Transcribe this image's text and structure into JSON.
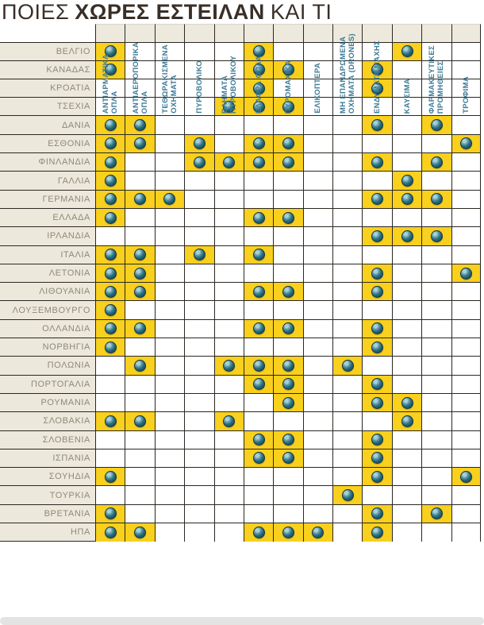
{
  "title": {
    "light_prefix": "ΠΟΙΕΣ",
    "bold": "ΧΩΡΕΣ ΕΣΤΕΙΛΑΝ",
    "light_suffix": "ΚΑΙ ΤΙ"
  },
  "colors": {
    "highlight_yellow": "#f8d01d",
    "dot_teal": "#256d7d",
    "dot_outline": "#16343f",
    "dot_highlight": "#a9cfd8",
    "grid_line": "#2b2722",
    "label_background": "#ece9dc",
    "label_text": "#8f887a",
    "header_text": "#3f7b96",
    "bottom_bar": "#e3e3e1"
  },
  "chart_data": {
    "type": "heatmap",
    "title": "ΠΟΙΕΣ ΧΩΡΕΣ ΕΣΤΕΙΛΑΝ ΚΑΙ ΤΙ",
    "columns": [
      "ΑΝΤΙΑΡΜΑΤΙΚΑ\nΟΠΛΑ",
      "ΑΝΤΙΑΕΡΟΠΟΡΙΚΑ\nΟΠΛΑ",
      "ΤΕΘΩΡΑΚΙΣΜΕΝΑ\nΟΧΗΜΑΤΑ",
      "ΠΥΡΟΒΟΛΙΚΟ",
      "ΒΛΗΜΑΤΑ\nΠΥΡΟΒΟΛΙΚΟΥ",
      "ΕΛΑΦΡΑ ΟΠΛΑ",
      "ΠΥΡΟΜΑΧΙΚΑ",
      "ΕΛΙΚΟΠΤΕΡΑ",
      "ΜΗ ΕΠΑΝΔΡΩΜΕΝΑ\nΟΧΗΜΑΤΑ (DRONES)",
      "ΕΝΔΥΜΑΤΑ ΜΑΧΗΣ",
      "ΚΑΥΣΙΜΑ",
      "ΦΑΡΜΑΚΕΥΤΙΚΕΣ\nΠΡΟΜΗΘΕΙΕΣ",
      "ΤΡΟΦΙΜΑ"
    ],
    "rows": [
      {
        "country": "ΒΕΛΓΙΟ",
        "values": [
          1,
          0,
          0,
          0,
          0,
          1,
          0,
          0,
          0,
          0,
          1,
          0,
          0
        ]
      },
      {
        "country": "ΚΑΝΑΔΑΣ",
        "values": [
          1,
          0,
          0,
          0,
          0,
          1,
          1,
          0,
          0,
          1,
          0,
          0,
          0
        ]
      },
      {
        "country": "ΚΡΟΑΤΙΑ",
        "values": [
          0,
          0,
          0,
          0,
          0,
          1,
          0,
          0,
          0,
          1,
          0,
          0,
          0
        ]
      },
      {
        "country": "ΤΣΕΧΙΑ",
        "values": [
          0,
          0,
          0,
          0,
          1,
          1,
          1,
          0,
          0,
          0,
          0,
          0,
          0
        ]
      },
      {
        "country": "ΔΑΝΙΑ",
        "values": [
          1,
          1,
          0,
          0,
          0,
          0,
          0,
          0,
          0,
          1,
          0,
          1,
          0
        ]
      },
      {
        "country": "ΕΣΘΟΝΙΑ",
        "values": [
          1,
          1,
          0,
          1,
          0,
          1,
          1,
          0,
          0,
          0,
          0,
          0,
          1
        ]
      },
      {
        "country": "ΦΙΝΛΑΝΔΙΑ",
        "values": [
          1,
          0,
          0,
          1,
          1,
          1,
          1,
          0,
          0,
          1,
          0,
          1,
          0
        ]
      },
      {
        "country": "ΓΑΛΛΙΑ",
        "values": [
          1,
          0,
          0,
          0,
          0,
          0,
          0,
          0,
          0,
          0,
          1,
          0,
          0
        ]
      },
      {
        "country": "ΓΕΡΜΑΝΙΑ",
        "values": [
          1,
          1,
          1,
          0,
          0,
          0,
          0,
          0,
          0,
          1,
          1,
          1,
          0
        ]
      },
      {
        "country": "ΕΛΛΑΔΑ",
        "values": [
          1,
          0,
          0,
          0,
          0,
          1,
          1,
          0,
          0,
          0,
          0,
          0,
          0
        ]
      },
      {
        "country": "ΙΡΛΑΝΔΙΑ",
        "values": [
          0,
          0,
          0,
          0,
          0,
          0,
          0,
          0,
          0,
          1,
          1,
          1,
          0
        ]
      },
      {
        "country": "ΙΤΑΛΙΑ",
        "values": [
          1,
          1,
          0,
          1,
          0,
          1,
          0,
          0,
          0,
          0,
          0,
          0,
          0
        ]
      },
      {
        "country": "ΛΕΤΟΝΙΑ",
        "values": [
          1,
          1,
          0,
          0,
          0,
          0,
          0,
          0,
          0,
          1,
          0,
          0,
          1
        ]
      },
      {
        "country": "ΛΙΘΟΥΑΝΙΑ",
        "values": [
          1,
          1,
          0,
          0,
          0,
          1,
          1,
          0,
          0,
          1,
          0,
          0,
          0
        ]
      },
      {
        "country": "ΛΟΥΞΕΜΒΟΥΡΓΟ",
        "values": [
          1,
          0,
          0,
          0,
          0,
          0,
          0,
          0,
          0,
          0,
          0,
          0,
          0
        ]
      },
      {
        "country": "ΟΛΛΑΝΔΙΑ",
        "values": [
          1,
          1,
          0,
          0,
          0,
          1,
          1,
          0,
          0,
          1,
          0,
          0,
          0
        ]
      },
      {
        "country": "ΝΟΡΒΗΓΙΑ",
        "values": [
          1,
          0,
          0,
          0,
          0,
          0,
          0,
          0,
          0,
          1,
          0,
          0,
          0
        ]
      },
      {
        "country": "ΠΟΛΩΝΙΑ",
        "values": [
          0,
          1,
          0,
          0,
          1,
          1,
          1,
          0,
          1,
          0,
          0,
          0,
          0
        ]
      },
      {
        "country": "ΠΟΡΤΟΓΑΛΙΑ",
        "values": [
          0,
          0,
          0,
          0,
          0,
          1,
          1,
          0,
          0,
          1,
          0,
          0,
          0
        ]
      },
      {
        "country": "ΡΟΥΜΑΝΙΑ",
        "values": [
          0,
          0,
          0,
          0,
          0,
          0,
          1,
          0,
          0,
          1,
          1,
          0,
          0
        ]
      },
      {
        "country": "ΣΛΟΒΑΚΙΑ",
        "values": [
          1,
          1,
          0,
          0,
          1,
          0,
          0,
          0,
          0,
          0,
          1,
          0,
          0
        ]
      },
      {
        "country": "ΣΛΟΒΕΝΙΑ",
        "values": [
          0,
          0,
          0,
          0,
          0,
          1,
          1,
          0,
          0,
          1,
          0,
          0,
          0
        ]
      },
      {
        "country": "ΙΣΠΑΝΙΑ",
        "values": [
          0,
          0,
          0,
          0,
          0,
          1,
          1,
          0,
          0,
          1,
          0,
          0,
          0
        ]
      },
      {
        "country": "ΣΟΥΗΔΙΑ",
        "values": [
          1,
          0,
          0,
          0,
          0,
          0,
          0,
          0,
          0,
          1,
          0,
          0,
          1
        ]
      },
      {
        "country": "ΤΟΥΡΚΙΑ",
        "values": [
          0,
          0,
          0,
          0,
          0,
          0,
          0,
          0,
          1,
          0,
          0,
          0,
          0
        ]
      },
      {
        "country": "ΒΡΕΤΑΝΙΑ",
        "values": [
          1,
          0,
          0,
          0,
          0,
          0,
          0,
          0,
          0,
          1,
          0,
          1,
          0
        ]
      },
      {
        "country": "ΗΠΑ",
        "values": [
          1,
          1,
          0,
          0,
          0,
          1,
          1,
          1,
          0,
          1,
          0,
          0,
          0
        ]
      }
    ]
  }
}
